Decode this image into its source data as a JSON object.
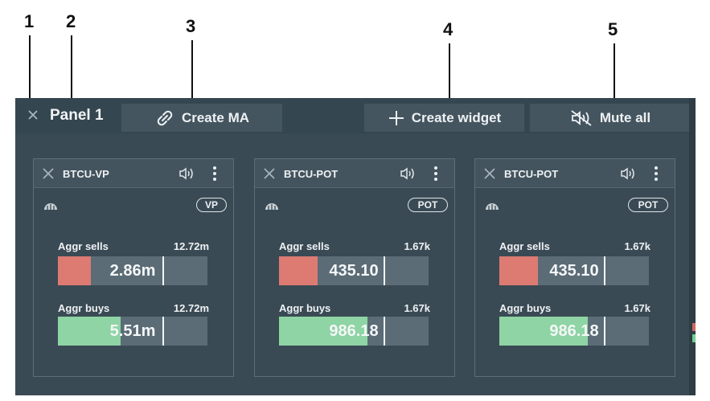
{
  "callouts": [
    "1",
    "2",
    "3",
    "4",
    "5"
  ],
  "panel": {
    "title": "Panel 1",
    "close_icon": "close-icon",
    "buttons": {
      "create_ma": {
        "label": "Create MA",
        "icon": "link-icon"
      },
      "create_widget": {
        "label": "Create widget",
        "icon": "plus-icon"
      },
      "mute_all": {
        "label": "Mute all",
        "icon": "mute-icon"
      }
    }
  },
  "widgets": [
    {
      "title": "BTCU-VP",
      "badge": "VP",
      "sells": {
        "label": "Aggr sells",
        "max": "12.72m",
        "value": "2.86m",
        "fill_fraction": 0.22,
        "marker_fraction": 0.7
      },
      "buys": {
        "label": "Aggr buys",
        "max": "12.72m",
        "value": "5.51m",
        "fill_fraction": 0.42,
        "marker_fraction": 0.7
      }
    },
    {
      "title": "BTCU-POT",
      "badge": "POT",
      "sells": {
        "label": "Aggr sells",
        "max": "1.67k",
        "value": "435.10",
        "fill_fraction": 0.26,
        "marker_fraction": 0.7
      },
      "buys": {
        "label": "Aggr buys",
        "max": "1.67k",
        "value": "986.18",
        "fill_fraction": 0.59,
        "marker_fraction": 0.7
      }
    },
    {
      "title": "BTCU-POT",
      "badge": "POT",
      "sells": {
        "label": "Aggr sells",
        "max": "1.67k",
        "value": "435.10",
        "fill_fraction": 0.26,
        "marker_fraction": 0.7
      },
      "buys": {
        "label": "Aggr buys",
        "max": "1.67k",
        "value": "986.18",
        "fill_fraction": 0.59,
        "marker_fraction": 0.7
      }
    }
  ],
  "colors": {
    "panel_bg": "#3a4a54",
    "header_bg": "#344650",
    "button_bg": "#44555f",
    "sell_fill": "#dd7b73",
    "buy_fill": "#8ed4a4",
    "bar_bg": "#5b6c76",
    "edge_red": "#d0685f",
    "edge_green": "#6ed08e"
  }
}
